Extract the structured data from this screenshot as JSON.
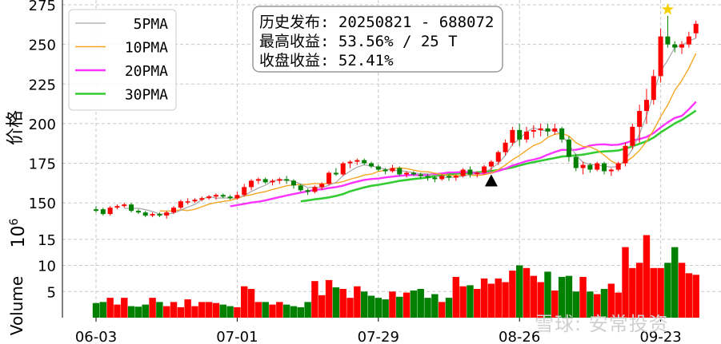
{
  "chart_data": [
    {
      "type": "candlestick",
      "panel": "price",
      "ylabel": "价格",
      "ylim": [
        132,
        278
      ],
      "yticks": [
        "150",
        "175",
        "200",
        "225",
        "250",
        "275"
      ],
      "grid": true,
      "legend_position": "top-left",
      "legend": [
        {
          "label": "5PMA",
          "color": "#a6a6a6"
        },
        {
          "label": "10PMA",
          "color": "#f5a623"
        },
        {
          "label": "20PMA",
          "color": "#ff33ff"
        },
        {
          "label": "30PMA",
          "color": "#33cc33"
        }
      ],
      "annotation": {
        "lines": [
          "历史发布: 20250821 - 688072",
          "最高收益: 53.56% / 25 T",
          "收盘收益: 52.41%"
        ]
      },
      "markers": [
        {
          "kind": "triangle",
          "day_index": 56,
          "value": 164,
          "color": "#000000"
        },
        {
          "kind": "star",
          "day_index": 81,
          "value": 272,
          "color": "#f5d000"
        }
      ],
      "up_color": "#ff0000",
      "down_color": "#008000",
      "candles": [
        [
          146,
          148,
          144,
          145
        ],
        [
          146,
          147,
          142,
          143
        ],
        [
          143,
          148,
          142,
          147
        ],
        [
          147,
          149,
          146,
          148
        ],
        [
          148,
          150,
          147,
          149
        ],
        [
          149,
          150,
          144,
          145
        ],
        [
          145,
          146,
          143,
          144
        ],
        [
          144,
          145,
          141,
          142
        ],
        [
          142,
          144,
          141,
          143
        ],
        [
          143,
          144,
          141,
          142
        ],
        [
          142,
          145,
          140,
          144
        ],
        [
          144,
          148,
          143,
          147
        ],
        [
          147,
          152,
          146,
          151
        ],
        [
          151,
          153,
          149,
          151
        ],
        [
          151,
          153,
          150,
          152
        ],
        [
          152,
          154,
          151,
          153
        ],
        [
          153,
          155,
          152,
          154
        ],
        [
          154,
          156,
          152,
          155
        ],
        [
          155,
          156,
          153,
          154
        ],
        [
          154,
          155,
          152,
          153
        ],
        [
          153,
          157,
          152,
          155
        ],
        [
          155,
          162,
          154,
          160
        ],
        [
          160,
          165,
          158,
          164
        ],
        [
          164,
          166,
          162,
          165
        ],
        [
          165,
          166,
          162,
          163
        ],
        [
          163,
          165,
          161,
          164
        ],
        [
          164,
          166,
          162,
          165
        ],
        [
          165,
          167,
          162,
          164
        ],
        [
          164,
          165,
          159,
          161
        ],
        [
          161,
          162,
          157,
          158
        ],
        [
          158,
          159,
          155,
          157
        ],
        [
          157,
          161,
          156,
          160
        ],
        [
          160,
          163,
          158,
          162
        ],
        [
          162,
          170,
          161,
          169
        ],
        [
          169,
          172,
          167,
          168
        ],
        [
          168,
          176,
          167,
          175
        ],
        [
          175,
          177,
          172,
          176
        ],
        [
          176,
          178,
          174,
          177
        ],
        [
          177,
          178,
          174,
          175
        ],
        [
          175,
          176,
          172,
          173
        ],
        [
          173,
          174,
          170,
          171
        ],
        [
          171,
          172,
          168,
          170
        ],
        [
          170,
          174,
          169,
          172
        ],
        [
          172,
          173,
          167,
          168
        ],
        [
          168,
          170,
          166,
          169
        ],
        [
          169,
          170,
          167,
          168
        ],
        [
          168,
          169,
          165,
          167
        ],
        [
          167,
          168,
          164,
          166
        ],
        [
          166,
          167,
          163,
          165
        ],
        [
          165,
          168,
          164,
          167
        ],
        [
          167,
          168,
          164,
          166
        ],
        [
          166,
          168,
          164,
          167
        ],
        [
          167,
          172,
          166,
          171
        ],
        [
          171,
          173,
          166,
          168
        ],
        [
          168,
          170,
          166,
          169
        ],
        [
          169,
          174,
          168,
          173
        ],
        [
          173,
          177,
          170,
          176
        ],
        [
          176,
          183,
          174,
          182
        ],
        [
          182,
          190,
          180,
          188
        ],
        [
          188,
          198,
          186,
          196
        ],
        [
          196,
          200,
          186,
          190
        ],
        [
          190,
          198,
          188,
          195
        ],
        [
          195,
          199,
          191,
          196
        ],
        [
          196,
          200,
          192,
          197
        ],
        [
          197,
          200,
          192,
          195
        ],
        [
          195,
          200,
          193,
          197
        ],
        [
          197,
          198,
          188,
          190
        ],
        [
          190,
          192,
          176,
          179
        ],
        [
          179,
          181,
          170,
          172
        ],
        [
          172,
          176,
          168,
          174
        ],
        [
          174,
          175,
          169,
          171
        ],
        [
          171,
          176,
          170,
          175
        ],
        [
          175,
          176,
          168,
          170
        ],
        [
          170,
          172,
          167,
          171
        ],
        [
          171,
          176,
          170,
          175
        ],
        [
          175,
          188,
          173,
          186
        ],
        [
          186,
          200,
          184,
          198
        ],
        [
          198,
          212,
          188,
          208
        ],
        [
          208,
          222,
          200,
          215
        ],
        [
          215,
          234,
          212,
          230
        ],
        [
          230,
          260,
          226,
          255
        ],
        [
          255,
          268,
          248,
          250
        ],
        [
          250,
          252,
          245,
          248
        ],
        [
          248,
          252,
          244,
          250
        ],
        [
          250,
          258,
          248,
          255
        ],
        [
          257,
          265,
          254,
          263
        ]
      ],
      "ma5": [
        null,
        null,
        null,
        null,
        146.6,
        146.6,
        146.6,
        145.8,
        144.6,
        143.0,
        143.0,
        143.6,
        145.4,
        147.4,
        149.0,
        152.2,
        154.2,
        153.0,
        153.2,
        153.0,
        153.2,
        154.6,
        157.2,
        159.4,
        161.2,
        163.8,
        164.6,
        164.4,
        163.6,
        162.0,
        159.6,
        160.0,
        159.6,
        161.2,
        163.0,
        167.2,
        170.0,
        172.6,
        174.0,
        173.4,
        172.4,
        171.2,
        170.8,
        170.2,
        169.8,
        169.0,
        168.4,
        168.4,
        167.4,
        166.2,
        166.2,
        166.2,
        167.0,
        167.8,
        168.4,
        169.4,
        171.6,
        175.0,
        180.0,
        187.0,
        190.4,
        194.8,
        197.4,
        195.8,
        195.6,
        196.2,
        192.8,
        187.0,
        180.2,
        175.6,
        174.4,
        174.0,
        173.2,
        172.6,
        173.0,
        177.4,
        183.8,
        193.4,
        205.0,
        219.0,
        233.2,
        240.0,
        248.0,
        249.6,
        252.0,
        254.0
      ],
      "ma10": [
        null,
        null,
        null,
        null,
        null,
        null,
        null,
        null,
        null,
        145.0,
        144.8,
        145.1,
        145.6,
        145.2,
        146.0,
        147.6,
        149.2,
        150.2,
        151.0,
        151.6,
        152.8,
        154.4,
        155.1,
        156.3,
        157.1,
        158.5,
        159.6,
        160.8,
        161.4,
        161.6,
        161.7,
        162.3,
        162.0,
        162.4,
        162.5,
        163.4,
        165.0,
        166.1,
        167.6,
        168.2,
        169.8,
        170.6,
        171.7,
        172.1,
        171.6,
        170.7,
        169.8,
        169.6,
        168.8,
        168.0,
        167.6,
        167.3,
        167.7,
        167.6,
        167.3,
        167.8,
        168.9,
        171.0,
        173.9,
        177.2,
        180.0,
        183.2,
        186.2,
        187.9,
        191.3,
        193.3,
        193.8,
        192.2,
        188.0,
        185.6,
        185.3,
        183.4,
        180.1,
        176.4,
        174.3,
        175.7,
        178.8,
        183.1,
        188.8,
        196.0,
        204.4,
        211.8,
        220.9,
        227.3,
        235.0,
        244.3
      ],
      "ma20": [
        null,
        null,
        null,
        null,
        null,
        null,
        null,
        null,
        null,
        null,
        null,
        null,
        null,
        null,
        null,
        null,
        null,
        null,
        null,
        147.9,
        148.6,
        149.4,
        150.2,
        150.8,
        151.6,
        152.7,
        153.7,
        154.7,
        155.6,
        156.5,
        157.3,
        158.3,
        158.6,
        159.4,
        160.0,
        160.9,
        162.3,
        163.4,
        164.5,
        165.1,
        165.4,
        166.1,
        166.6,
        167.1,
        167.4,
        167.7,
        167.4,
        167.7,
        168.2,
        168.6,
        169.2,
        169.3,
        169.6,
        169.3,
        168.8,
        168.5,
        169.0,
        170.2,
        171.6,
        173.6,
        174.9,
        176.4,
        177.3,
        178.5,
        180.5,
        182.1,
        183.5,
        183.4,
        183.5,
        184.5,
        186.2,
        186.8,
        187.0,
        186.5,
        186.7,
        187.8,
        189.3,
        190.3,
        191.6,
        194.1,
        197.6,
        200.8,
        203.6,
        204.9,
        209.1,
        213.8
      ],
      "ma30": [
        null,
        null,
        null,
        null,
        null,
        null,
        null,
        null,
        null,
        null,
        null,
        null,
        null,
        null,
        null,
        null,
        null,
        null,
        null,
        null,
        null,
        null,
        null,
        null,
        null,
        null,
        null,
        null,
        null,
        151.0,
        151.6,
        152.3,
        152.8,
        153.5,
        154.4,
        155.6,
        157.3,
        158.6,
        159.8,
        160.8,
        161.4,
        162.2,
        163.0,
        163.9,
        164.5,
        165.1,
        165.6,
        166.1,
        166.9,
        167.5,
        168.0,
        168.6,
        168.8,
        169.0,
        169.3,
        169.6,
        170.1,
        170.7,
        171.5,
        172.4,
        173.6,
        174.8,
        175.7,
        176.6,
        177.5,
        178.3,
        179.2,
        179.7,
        180.0,
        180.5,
        181.3,
        182.1,
        182.5,
        182.7,
        183.1,
        184.2,
        185.7,
        187.3,
        188.9,
        191.2,
        194.5,
        197.3,
        200.1,
        202.4,
        205.3,
        208.2
      ]
    },
    {
      "type": "bar",
      "panel": "volume",
      "ylabel": "Volume",
      "unit_label": "10^6",
      "ylim": [
        0,
        16.5
      ],
      "yticks": [
        "5",
        "10",
        "15"
      ],
      "values": [
        2.8,
        3.0,
        3.8,
        2.5,
        3.8,
        2.2,
        2.1,
        2.5,
        3.8,
        3.0,
        2.2,
        3.0,
        2.0,
        3.5,
        2.2,
        3.0,
        3.0,
        2.8,
        2.5,
        2.2,
        2.0,
        6.0,
        5.5,
        3.0,
        3.0,
        2.5,
        3.0,
        2.5,
        2.2,
        2.0,
        3.0,
        7.0,
        4.3,
        7.2,
        5.8,
        5.5,
        3.8,
        6.0,
        5.0,
        4.2,
        3.8,
        3.5,
        5.0,
        4.0,
        4.8,
        5.2,
        5.5,
        3.8,
        4.5,
        3.0,
        3.8,
        7.8,
        6.0,
        6.2,
        5.5,
        7.5,
        6.5,
        7.5,
        6.8,
        9.0,
        10.0,
        9.5,
        8.0,
        6.8,
        8.8,
        5.2,
        7.8,
        8.0,
        5.0,
        7.8,
        5.0,
        4.5,
        5.5,
        6.5,
        4.8,
        13.5,
        9.5,
        10.5,
        15.8,
        9.5,
        9.5,
        10.5,
        13.5,
        10.5,
        8.5,
        8.2
      ]
    }
  ],
  "xaxis": {
    "ticks": [
      {
        "label": "06-03",
        "day_index": 0
      },
      {
        "label": "07-01",
        "day_index": 20
      },
      {
        "label": "07-29",
        "day_index": 40
      },
      {
        "label": "08-26",
        "day_index": 60
      },
      {
        "label": "09-23",
        "day_index": 80
      }
    ]
  },
  "watermark": "雪球: 安常投资"
}
